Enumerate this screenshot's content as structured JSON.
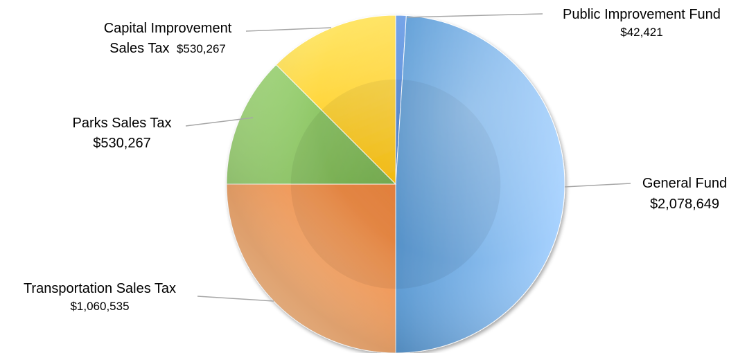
{
  "chart_data": {
    "type": "pie",
    "title": "",
    "start_angle_deg": 0,
    "direction": "clockwise",
    "slices": [
      {
        "name": "Public Improvement Fund",
        "value": 42421,
        "value_label": "$42,421",
        "color": "#2E6DC8",
        "highlight": "#6FA0E8"
      },
      {
        "name": "General Fund",
        "value": 2078649,
        "value_label": "$2,078,649",
        "color": "#5B9BD5",
        "highlight": "#A9D3FF"
      },
      {
        "name": "Transportation Sales Tax",
        "value": 1060535,
        "value_label": "$1,060,535",
        "color": "#ED7D31",
        "highlight": "#FFC08A"
      },
      {
        "name": "Parks Sales Tax",
        "value": 530267,
        "value_label": "$530,267",
        "color": "#70AD47",
        "highlight": "#A6DA80"
      },
      {
        "name": "Capital Improvement Sales Tax",
        "value": 530267,
        "value_label": "$530,267",
        "color": "#FFC000",
        "highlight": "#FFE566"
      }
    ],
    "labels": [
      {
        "line1": "Public Improvement Fund",
        "line2": "$42,421"
      },
      {
        "line1": "General Fund",
        "line2": "$2,078,649"
      },
      {
        "line1": "Transportation Sales Tax",
        "line2": "$1,060,535"
      },
      {
        "line1": "Parks Sales Tax",
        "line2": "$530,267"
      },
      {
        "line1": "Capital Improvement",
        "line2": "Sales Tax",
        "line2_value": "$530,267"
      }
    ],
    "legend": "none"
  }
}
